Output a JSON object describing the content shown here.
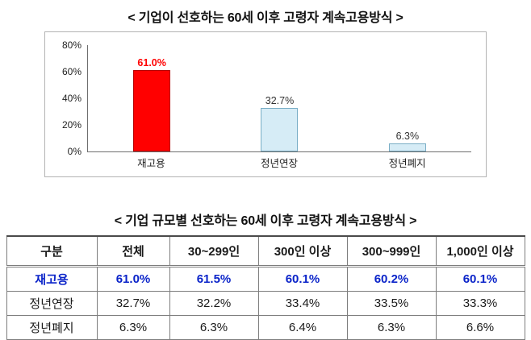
{
  "chart": {
    "title": "< 기업이 선호하는 60세 이후 고령자 계속고용방식 >",
    "y_ticks": [
      "80%",
      "60%",
      "40%",
      "20%",
      "0%"
    ],
    "bars": [
      {
        "label": "재고용",
        "value": 61.0,
        "display": "61.0%",
        "color": "#ff0000",
        "border": "#b40000",
        "label_color": "#ff0000"
      },
      {
        "label": "정년연장",
        "value": 32.7,
        "display": "32.7%",
        "color": "#d6ecf6",
        "border": "#7aaec6",
        "label_color": "#333333"
      },
      {
        "label": "정년폐지",
        "value": 6.3,
        "display": "6.3%",
        "color": "#d6ecf6",
        "border": "#7aaec6",
        "label_color": "#333333"
      }
    ]
  },
  "table": {
    "title": "< 기업 규모별 선호하는 60세 이후 고령자 계속고용방식 >",
    "headers": [
      "구분",
      "전체",
      "30~299인",
      "300인 이상",
      "300~999인",
      "1,000인 이상"
    ],
    "rows": [
      {
        "label": "재고용",
        "values": [
          "61.0%",
          "61.5%",
          "60.1%",
          "60.2%",
          "60.1%"
        ],
        "highlight": true
      },
      {
        "label": "정년연장",
        "values": [
          "32.7%",
          "32.2%",
          "33.4%",
          "33.5%",
          "33.3%"
        ],
        "highlight": false
      },
      {
        "label": "정년폐지",
        "values": [
          "6.3%",
          "6.3%",
          "6.4%",
          "6.3%",
          "6.6%"
        ],
        "highlight": false
      }
    ]
  },
  "chart_data": [
    {
      "type": "bar",
      "title": "기업이 선호하는 60세 이후 고령자 계속고용방식",
      "categories": [
        "재고용",
        "정년연장",
        "정년폐지"
      ],
      "values": [
        61.0,
        32.7,
        6.3
      ],
      "value_labels": [
        "61.0%",
        "32.7%",
        "6.3%"
      ],
      "bar_colors": [
        "#ff0000",
        "#d6ecf6",
        "#d6ecf6"
      ],
      "xlabel": "",
      "ylabel": "",
      "ylim": [
        0,
        80
      ],
      "y_ticks": [
        0,
        20,
        40,
        60,
        80
      ],
      "grid": false,
      "legend": "none"
    },
    {
      "type": "table",
      "title": "기업 규모별 선호하는 60세 이후 고령자 계속고용방식",
      "columns": [
        "구분",
        "전체",
        "30~299인",
        "300인 이상",
        "300~999인",
        "1,000인 이상"
      ],
      "rows": [
        [
          "재고용",
          "61.0%",
          "61.5%",
          "60.1%",
          "60.2%",
          "60.1%"
        ],
        [
          "정년연장",
          "32.7%",
          "32.2%",
          "33.4%",
          "33.5%",
          "33.3%"
        ],
        [
          "정년폐지",
          "6.3%",
          "6.3%",
          "6.4%",
          "6.3%",
          "6.6%"
        ]
      ]
    }
  ]
}
